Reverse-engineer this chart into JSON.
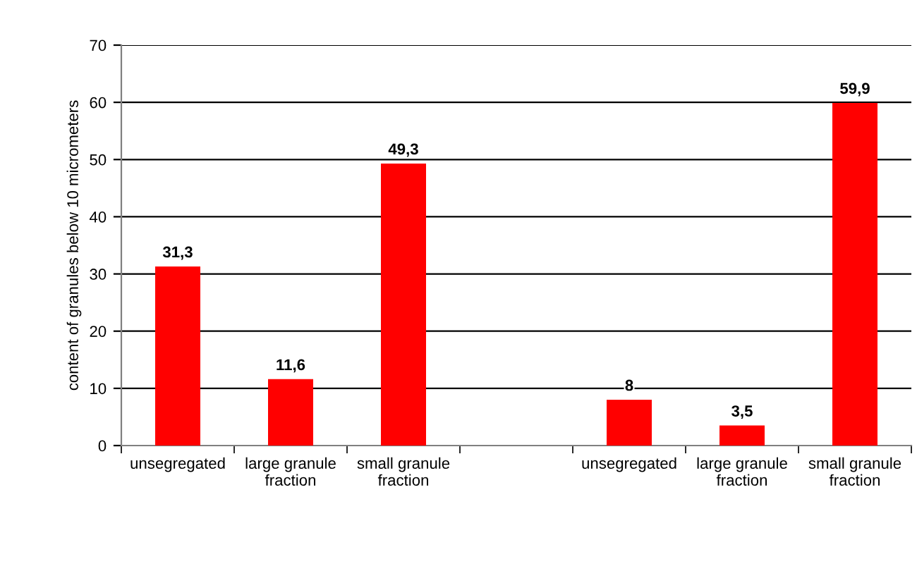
{
  "chart_data": {
    "type": "bar",
    "ylabel": "content of granules below 10 micrometers",
    "categories": [
      "unsegregated",
      "large granule\nfraction",
      "small granule\nfraction",
      null,
      "unsegregated",
      "large granule\nfraction",
      "small granule\nfraction"
    ],
    "values": [
      31.3,
      11.6,
      49.3,
      null,
      8,
      3.5,
      59.9
    ],
    "value_labels": [
      "31,3",
      "11,6",
      "49,3",
      null,
      "8",
      "3,5",
      "59,9"
    ],
    "color": "#ff0000",
    "ylim": [
      0,
      70
    ],
    "yticks": [
      0,
      10,
      20,
      30,
      40,
      50,
      60,
      70
    ],
    "grid": "y",
    "legend": false
  }
}
